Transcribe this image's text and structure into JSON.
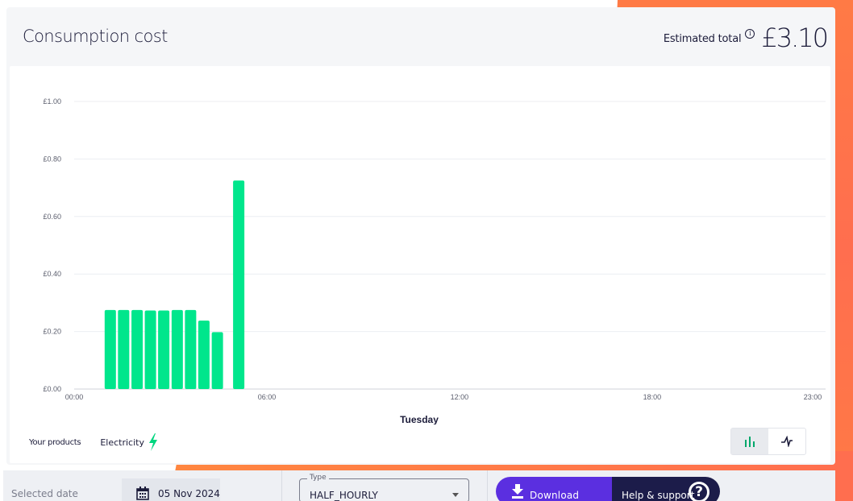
{
  "header": {
    "title": "Consumption cost",
    "estimated_label": "Estimated total",
    "estimated_value": "£3.10"
  },
  "chart_data": {
    "type": "bar",
    "y_ticks": [
      "£0.00",
      "£0.20",
      "£0.40",
      "£0.60",
      "£0.80",
      "£1.00"
    ],
    "ylim": [
      0,
      1.0
    ],
    "x_ticks": [
      {
        "label": "00:00",
        "slot": 0
      },
      {
        "label": "06:00",
        "slot": 12
      },
      {
        "label": "12:00",
        "slot": 24
      },
      {
        "label": "18:00",
        "slot": 36
      },
      {
        "label": "23:00",
        "slot": 46
      }
    ],
    "x_slots": 47,
    "xlabel": "Tuesday",
    "series": [
      {
        "color": "#00e68c",
        "points": [
          {
            "slot": 2.25,
            "value": 0.275
          },
          {
            "slot": 3.08,
            "value": 0.275
          },
          {
            "slot": 3.92,
            "value": 0.275
          },
          {
            "slot": 4.75,
            "value": 0.273
          },
          {
            "slot": 5.58,
            "value": 0.273
          },
          {
            "slot": 6.42,
            "value": 0.275
          },
          {
            "slot": 7.25,
            "value": 0.275
          },
          {
            "slot": 8.08,
            "value": 0.238
          },
          {
            "slot": 8.92,
            "value": 0.198
          },
          {
            "slot": 10.25,
            "value": 0.725
          }
        ]
      }
    ]
  },
  "products": {
    "label": "Your products",
    "items": [
      {
        "name": "Electricity",
        "icon": "lightning-bolt-icon",
        "color": "#00d67f"
      }
    ]
  },
  "view_toggle": [
    {
      "icon": "bar-chart-icon",
      "active": true
    },
    {
      "icon": "line-chart-icon",
      "active": false
    }
  ],
  "filters": {
    "date_label": "Selected date",
    "date_value": "05 Nov 2024",
    "type_legend": "Type",
    "type_value": "HALF_HOURLY"
  },
  "actions": {
    "download_label": "Download report",
    "help_label": "Help & support"
  }
}
